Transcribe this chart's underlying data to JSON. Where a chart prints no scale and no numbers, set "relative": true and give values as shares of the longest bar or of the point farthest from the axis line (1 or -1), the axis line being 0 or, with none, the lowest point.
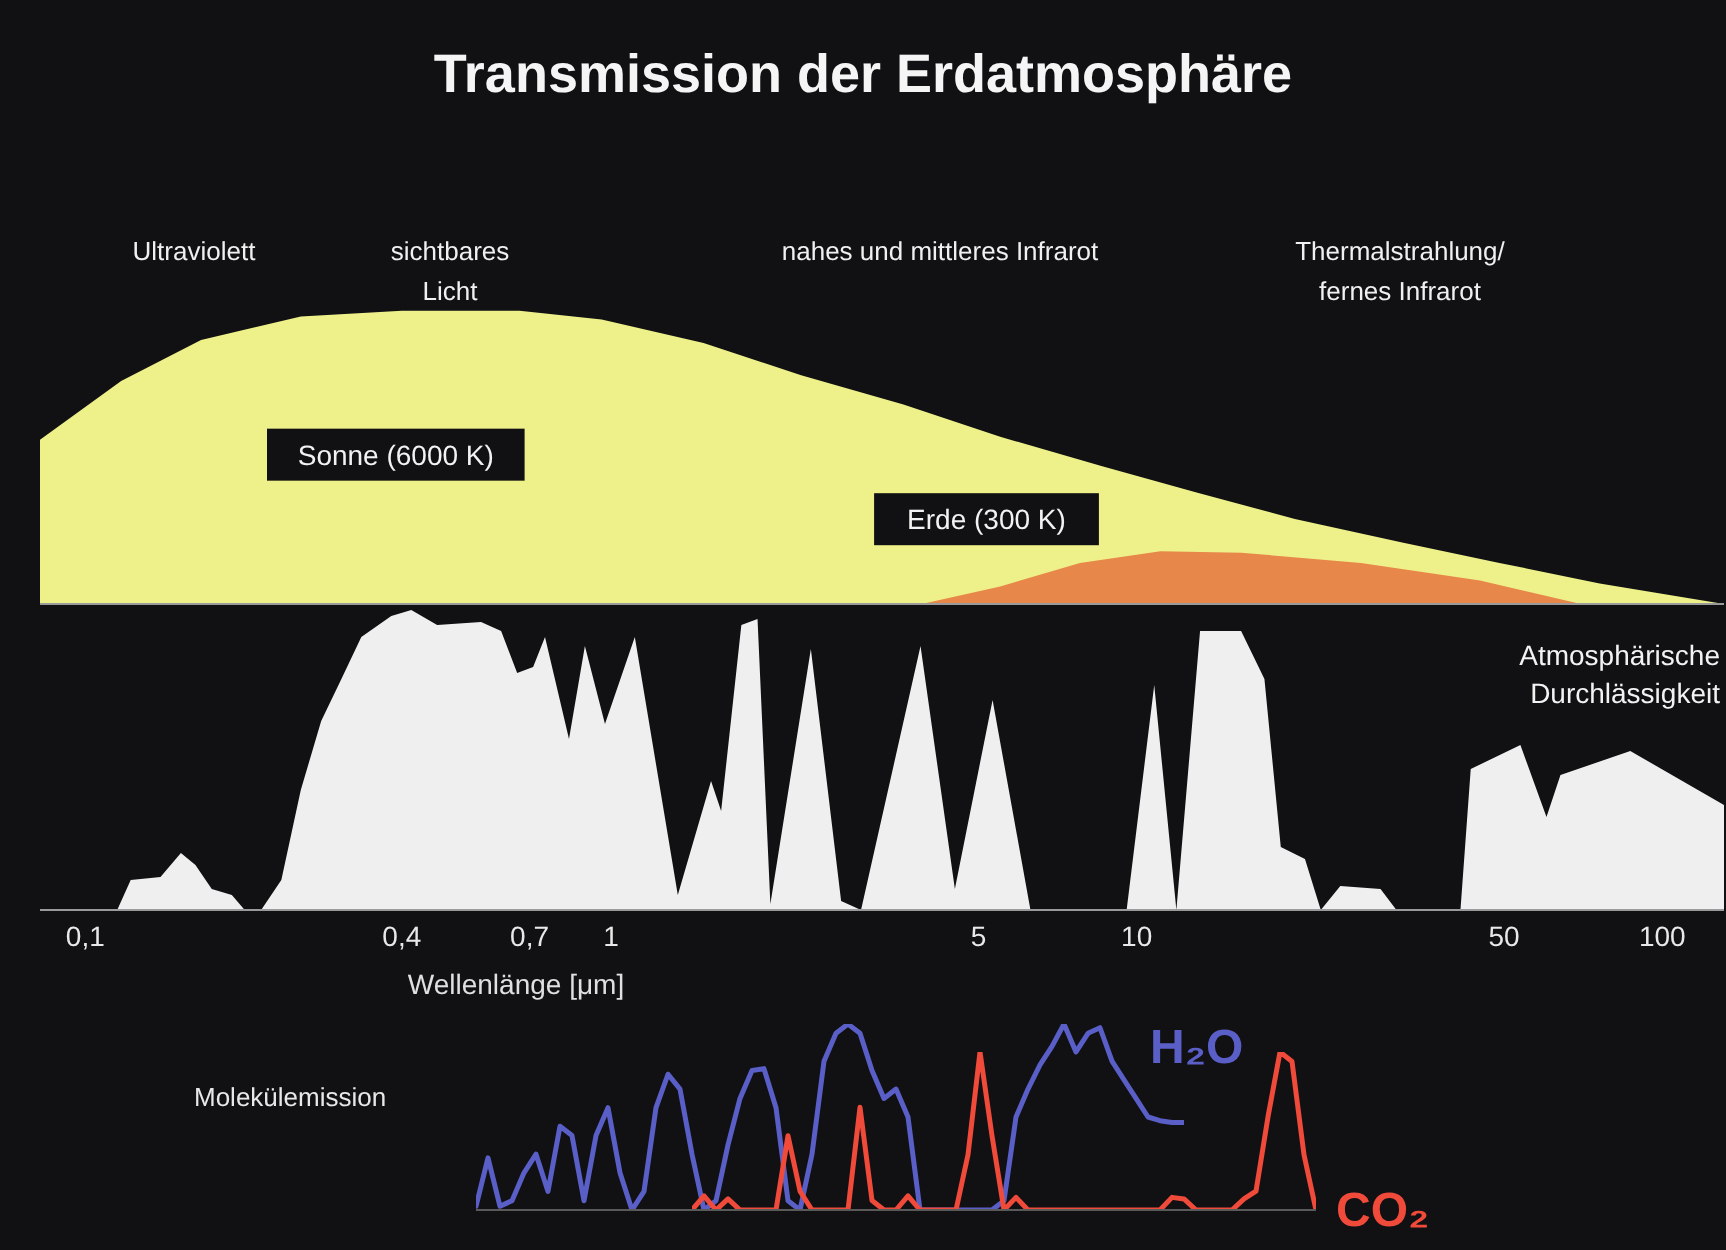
{
  "chart_data": [
    {
      "type": "area",
      "title": "Transmission der Erdatmosphäre",
      "relative": true,
      "xlim": [
        0.082,
        131
      ],
      "log": "x",
      "tick_labels": false,
      "legend": false,
      "grid": false,
      "annotations": [
        "Ultraviolett",
        "sichtbares\nLicht",
        "nahes und mittleres Infrarot",
        "Thermalstrahlung/\nfernes Infrarot"
      ],
      "series": [
        {
          "name": "Sonne (6000 K)",
          "color": "#eef08a",
          "x": [
            0.082,
            0.117,
            0.166,
            0.257,
            0.4,
            0.67,
            0.96,
            1.5,
            2.3,
            3.6,
            5.5,
            8.6,
            13,
            20,
            32,
            49,
            76,
            131
          ],
          "values": [
            0.56,
            0.76,
            0.9,
            0.98,
            1,
            1,
            0.97,
            0.89,
            0.78,
            0.68,
            0.57,
            0.47,
            0.38,
            0.29,
            0.21,
            0.14,
            0.07,
            0
          ]
        },
        {
          "name": "Erde (300 K)",
          "color": "#e8874a",
          "x": [
            3.9,
            5.5,
            7.8,
            11.1,
            15.8,
            26.7,
            45,
            70
          ],
          "values": [
            0,
            0.06,
            0.14,
            0.18,
            0.175,
            0.14,
            0.08,
            0
          ]
        }
      ]
    },
    {
      "type": "area",
      "relative": true,
      "xlim": [
        0.082,
        131
      ],
      "log": "x",
      "tick_labels": "x",
      "legend": false,
      "grid": false,
      "xlabel": "Wellenlänge  [μm]",
      "xticks": [
        {
          "value": 0.1,
          "label": "0,1"
        },
        {
          "value": 0.4,
          "label": "0,4"
        },
        {
          "value": 0.7,
          "label": "0,7"
        },
        1,
        5,
        10,
        50,
        100
      ],
      "x": [
        0.115,
        0.122,
        0.139,
        0.152,
        0.162,
        0.174,
        0.19,
        0.201,
        0.216,
        0.236,
        0.257,
        0.281,
        0.307,
        0.335,
        0.382,
        0.417,
        0.467,
        0.566,
        0.618,
        0.663,
        0.711,
        0.749,
        0.832,
        0.892,
        0.974,
        1.11,
        1.34,
        1.55,
        1.62,
        1.77,
        1.9,
        2.01,
        2.4,
        2.74,
        2.99,
        3.88,
        4.51,
        5.32,
        6.28,
        9.57,
        10.8,
        11.9,
        13.2,
        15.8,
        17.5,
        18.8,
        20.9,
        22.4,
        24.4,
        29.1,
        31.2,
        41.3,
        43.2,
        53.7,
        60.2,
        64,
        86.9,
        131
      ],
      "series": [
        {
          "name": "Atmosphärische Durchlässigkeit",
          "color": "#efefef",
          "values": [
            0,
            0.1,
            0.11,
            0.19,
            0.15,
            0.07,
            0.05,
            0,
            0,
            0.1,
            0.4,
            0.63,
            0.77,
            0.91,
            0.98,
            1,
            0.95,
            0.96,
            0.93,
            0.79,
            0.81,
            0.91,
            0.57,
            0.88,
            0.62,
            0.91,
            0.05,
            0.43,
            0.33,
            0.95,
            0.97,
            0.02,
            0.87,
            0.03,
            0,
            0.88,
            0.07,
            0.7,
            0,
            0,
            0.75,
            0,
            0.93,
            0.93,
            0.77,
            0.21,
            0.17,
            0,
            0.08,
            0.07,
            0,
            0,
            0.47,
            0.55,
            0.31,
            0.45,
            0.53,
            0.35
          ]
        }
      ]
    },
    {
      "type": "line",
      "relative": true,
      "legend": false,
      "grid": false,
      "marker": "none",
      "ylabel": "Molekülemission",
      "categories": [
        null,
        null,
        null,
        null,
        null,
        null,
        null,
        null,
        null,
        null,
        null,
        null,
        null,
        null,
        null,
        null,
        null,
        null,
        null,
        null,
        null,
        null,
        null,
        null,
        null,
        null,
        null,
        null,
        null,
        null,
        null,
        null,
        null,
        null,
        null,
        null,
        null,
        null,
        null,
        null,
        null,
        null,
        null,
        null,
        null,
        null,
        null,
        null,
        null,
        null,
        null,
        null,
        null,
        null,
        null,
        null,
        null,
        null,
        null,
        null
      ],
      "series": [
        {
          "name": "H₂O",
          "color": "#5a5fc8",
          "values": [
            0.02,
            0.28,
            0.02,
            0.05,
            0.2,
            0.3,
            0.1,
            0.45,
            0.4,
            0.05,
            0.4,
            0.55,
            0.2,
            0,
            0.1,
            0.55,
            0.73,
            0.65,
            0.3,
            0,
            0.05,
            0.35,
            0.6,
            0.75,
            0.76,
            0.55,
            0.05,
            0,
            0.3,
            0.8,
            0.95,
            1,
            0.95,
            0.75,
            0.6,
            0.65,
            0.5,
            0,
            0,
            0,
            0,
            0,
            0,
            0,
            0.05,
            0.5,
            0.65,
            0.78,
            0.88,
            1,
            0.85,
            0.95,
            0.98,
            0.8,
            0.7,
            0.6,
            0.5,
            0.48,
            0.47,
            0.47
          ]
        }
      ]
    },
    {
      "type": "line",
      "relative": true,
      "legend": false,
      "grid": false,
      "marker": "none",
      "categories": [
        null,
        null,
        null,
        null,
        null,
        null,
        null,
        null,
        null,
        null,
        null,
        null,
        null,
        null,
        null,
        null,
        null,
        null,
        null,
        null,
        null,
        null,
        null,
        null,
        null,
        null,
        null,
        null,
        null,
        null,
        null,
        null,
        null,
        null,
        null,
        null,
        null,
        null,
        null,
        null,
        null,
        null,
        null,
        null,
        null,
        null,
        null,
        null,
        null,
        null,
        null,
        null,
        null
      ],
      "series": [
        {
          "name": "CO₂",
          "color": "#f04a3a",
          "values": [
            0,
            0.09,
            0,
            0.07,
            0,
            0,
            0,
            0,
            0.47,
            0.12,
            0,
            0,
            0,
            0,
            0.65,
            0.06,
            0,
            0,
            0.09,
            0,
            0,
            0,
            0,
            0.35,
            1,
            0.47,
            0,
            0.08,
            0,
            0,
            0,
            0,
            0,
            0,
            0,
            0,
            0,
            0,
            0,
            0,
            0.08,
            0.07,
            0,
            0,
            0,
            0,
            0.07,
            0.12,
            0.59,
            1,
            0.94,
            0.35,
            0
          ]
        }
      ]
    }
  ]
}
